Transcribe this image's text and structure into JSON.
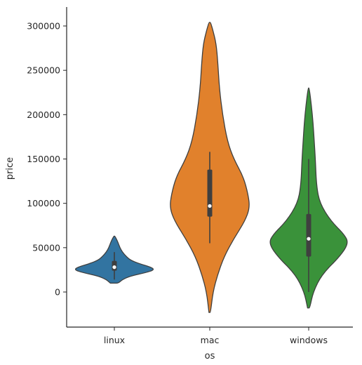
{
  "chart_data": {
    "type": "violin",
    "title": "",
    "xlabel": "os",
    "ylabel": "price",
    "ylim": [
      -40000,
      320000
    ],
    "yticks": [
      0,
      50000,
      100000,
      150000,
      200000,
      250000,
      300000
    ],
    "ytick_labels": [
      "0",
      "50000",
      "100000",
      "150000",
      "200000",
      "250000",
      "300000"
    ],
    "categories": [
      "linux",
      "mac",
      "windows"
    ],
    "grid": false,
    "legend": "none",
    "series": [
      {
        "category": "linux",
        "color": "#3274a1",
        "min": 10000,
        "q1": 24000,
        "median": 28000,
        "q3": 35000,
        "max": 63000,
        "whisker_low": 14000,
        "whisker_high": 45000,
        "density": [
          [
            10000,
            0.1
          ],
          [
            14000,
            0.2
          ],
          [
            18000,
            0.4
          ],
          [
            22000,
            0.8
          ],
          [
            25000,
            1.0
          ],
          [
            28000,
            0.92
          ],
          [
            32000,
            0.62
          ],
          [
            36000,
            0.4
          ],
          [
            40000,
            0.3
          ],
          [
            45000,
            0.2
          ],
          [
            50000,
            0.14
          ],
          [
            56000,
            0.09
          ],
          [
            60000,
            0.05
          ],
          [
            63000,
            0.01
          ]
        ]
      },
      {
        "category": "mac",
        "color": "#e1812c",
        "min": -23000,
        "q1": 85000,
        "median": 97000,
        "q3": 138000,
        "max": 304000,
        "whisker_low": 55000,
        "whisker_high": 158000,
        "density": [
          [
            -23000,
            0.005
          ],
          [
            0,
            0.02
          ],
          [
            20000,
            0.05
          ],
          [
            40000,
            0.09
          ],
          [
            60000,
            0.15
          ],
          [
            80000,
            0.22
          ],
          [
            95000,
            0.25
          ],
          [
            110000,
            0.24
          ],
          [
            130000,
            0.21
          ],
          [
            150000,
            0.15
          ],
          [
            170000,
            0.11
          ],
          [
            200000,
            0.08
          ],
          [
            230000,
            0.06
          ],
          [
            260000,
            0.05
          ],
          [
            280000,
            0.04
          ],
          [
            295000,
            0.02
          ],
          [
            304000,
            0.005
          ]
        ]
      },
      {
        "category": "windows",
        "color": "#3a923a",
        "min": -18000,
        "q1": 40000,
        "median": 60000,
        "q3": 88000,
        "max": 230000,
        "whisker_low": 0,
        "whisker_high": 150000,
        "density": [
          [
            -18000,
            0.01
          ],
          [
            0,
            0.04
          ],
          [
            20000,
            0.12
          ],
          [
            40000,
            0.28
          ],
          [
            55000,
            0.36
          ],
          [
            65000,
            0.32
          ],
          [
            80000,
            0.2
          ],
          [
            100000,
            0.1
          ],
          [
            120000,
            0.07
          ],
          [
            150000,
            0.06
          ],
          [
            170000,
            0.05
          ],
          [
            190000,
            0.04
          ],
          [
            210000,
            0.025
          ],
          [
            230000,
            0.005
          ]
        ]
      }
    ]
  }
}
